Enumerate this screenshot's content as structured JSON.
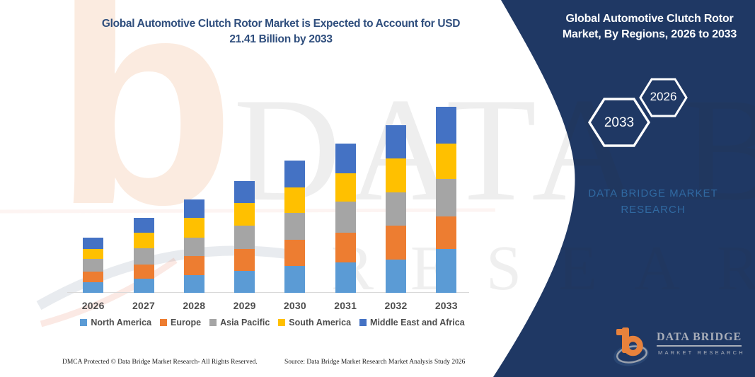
{
  "theme": {
    "navy": "#1F3864",
    "title_blue": "#2F4E7D",
    "panel_blue": "#3069A1",
    "text_gray": "#4D4D4D",
    "axis_gray": "#D9D9D9",
    "logo_orange": "#E8823C",
    "logo_silver": "#A9AEB9",
    "watermark_peach": "#F9DFCC"
  },
  "header": {
    "title_line1": "Global Automotive Clutch Rotor Market is Expected to Account for USD",
    "title_line2": "21.41 Billion by 2033"
  },
  "banner": {
    "line1": "Global Automotive Clutch Rotor",
    "line2": "Market, By Regions, 2026 to 2033",
    "hexagon_back_label": "2033",
    "hexagon_front_label": "2026",
    "brand_line1": "DATA BRIDGE MARKET",
    "brand_line2": "RESEARCH"
  },
  "watermark": {
    "letter": "b",
    "line1": "DATA BRIDGE",
    "line2": "RESEARCH"
  },
  "chart_data": {
    "type": "bar",
    "stacked": true,
    "title": "Global Automotive Clutch Rotor Market is Expected to Account for USD 21.41 Billion by 2033",
    "xlabel": "",
    "ylabel": "",
    "unit": "USD Billion",
    "grid": false,
    "legend_position": "bottom",
    "ylim": [
      0,
      22
    ],
    "categories": [
      "2026",
      "2027",
      "2028",
      "2029",
      "2030",
      "2031",
      "2032",
      "2033"
    ],
    "series": [
      {
        "name": "North America",
        "color": "#5B9BD5",
        "values": [
          1.22,
          1.63,
          2.04,
          2.5,
          3.07,
          3.48,
          3.87,
          5.05
        ]
      },
      {
        "name": "Europe",
        "color": "#ED7D31",
        "values": [
          1.22,
          1.63,
          2.17,
          2.52,
          3.04,
          3.44,
          3.87,
          3.74
        ]
      },
      {
        "name": "Asia Pacific",
        "color": "#A5A5A5",
        "values": [
          1.49,
          1.9,
          2.17,
          2.71,
          3.07,
          3.56,
          3.87,
          4.31
        ]
      },
      {
        "name": "South America",
        "color": "#FFC000",
        "values": [
          1.08,
          1.77,
          2.3,
          2.58,
          3.0,
          3.31,
          3.87,
          4.09
        ]
      },
      {
        "name": "Middle East and Africa",
        "color": "#4472C4",
        "values": [
          1.36,
          1.68,
          2.09,
          2.58,
          3.02,
          3.44,
          3.87,
          4.22
        ]
      }
    ],
    "totals": [
      6.37,
      8.61,
      10.77,
      12.89,
      15.2,
      17.23,
      19.35,
      21.41
    ]
  },
  "logo": {
    "title": "DATA BRIDGE",
    "subtitle": "MARKET RESEARCH"
  },
  "footer": {
    "dmca": "DMCA Protected © Data Bridge Market Research-  All Rights Reserved.",
    "source": "Source: Data Bridge Market Research  Market Analysis Study 2026"
  }
}
